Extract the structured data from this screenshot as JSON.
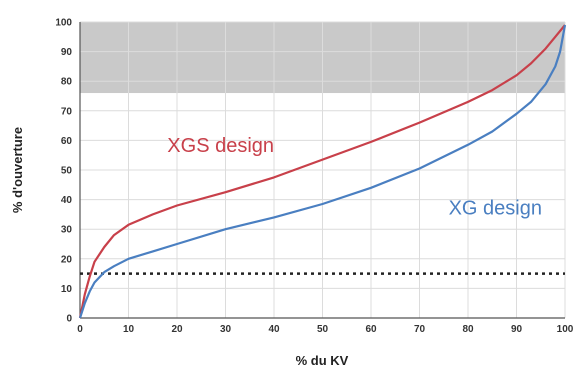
{
  "chart_data": {
    "type": "line",
    "title": "",
    "xlabel": "% du KV",
    "ylabel": "% d'ouverture",
    "xlim": [
      0,
      100
    ],
    "ylim": [
      0,
      100
    ],
    "x_ticks": [
      0,
      10,
      20,
      30,
      40,
      50,
      60,
      70,
      80,
      90,
      100
    ],
    "y_ticks": [
      0,
      10,
      20,
      30,
      40,
      50,
      60,
      70,
      80,
      90,
      100
    ],
    "grid": true,
    "shaded_band": {
      "y_from": 76,
      "y_to": 100,
      "color": "#c9c9c9"
    },
    "reference_line": {
      "y": 15,
      "style": "dotted",
      "color": "#222222"
    },
    "series": [
      {
        "name": "XGS design",
        "color": "#c8404a",
        "label_position": {
          "x": 18,
          "y": 56
        },
        "points": [
          [
            0,
            0
          ],
          [
            1,
            8
          ],
          [
            2,
            14
          ],
          [
            3,
            19
          ],
          [
            5,
            24
          ],
          [
            7,
            28
          ],
          [
            10,
            31.5
          ],
          [
            15,
            35
          ],
          [
            20,
            38
          ],
          [
            30,
            42.5
          ],
          [
            40,
            47.5
          ],
          [
            50,
            53.5
          ],
          [
            60,
            59.5
          ],
          [
            70,
            66
          ],
          [
            80,
            73
          ],
          [
            85,
            77
          ],
          [
            90,
            82
          ],
          [
            93,
            86
          ],
          [
            96,
            91
          ],
          [
            98,
            95
          ],
          [
            100,
            99
          ]
        ]
      },
      {
        "name": "XG design",
        "color": "#4a7fc1",
        "label_position": {
          "x": 76,
          "y": 35
        },
        "points": [
          [
            0,
            0
          ],
          [
            1,
            5
          ],
          [
            2,
            9
          ],
          [
            3,
            12
          ],
          [
            5,
            15.5
          ],
          [
            7,
            17.5
          ],
          [
            10,
            20
          ],
          [
            15,
            22.5
          ],
          [
            20,
            25
          ],
          [
            30,
            30
          ],
          [
            40,
            34
          ],
          [
            50,
            38.5
          ],
          [
            60,
            44
          ],
          [
            70,
            50.5
          ],
          [
            80,
            58.5
          ],
          [
            85,
            63
          ],
          [
            90,
            69
          ],
          [
            93,
            73
          ],
          [
            96,
            79
          ],
          [
            98,
            85
          ],
          [
            99,
            90
          ],
          [
            100,
            99
          ]
        ]
      }
    ]
  }
}
